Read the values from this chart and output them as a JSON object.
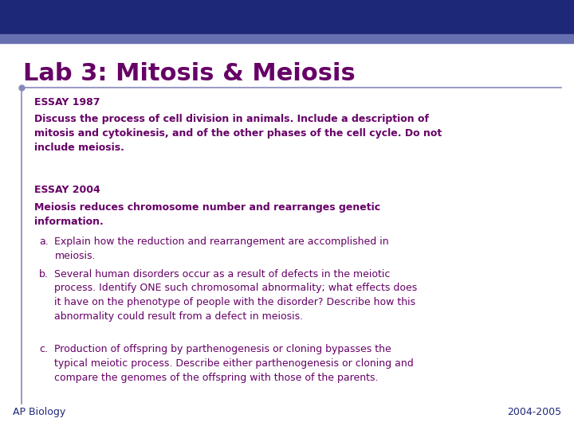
{
  "title": "Lab 3: Mitosis & Meiosis",
  "title_color": "#660066",
  "title_fontsize": 22,
  "header_bar_color": "#1E2878",
  "header_bar2_color": "#6670B0",
  "bg_color": "#FFFFFF",
  "left_line_color": "#8888BB",
  "footer_left": "AP Biology",
  "footer_right": "2004-2005",
  "footer_color": "#1E2878",
  "essay1_label": "ESSAY 1987",
  "essay1_body": "Discuss the process of cell division in animals. Include a description of\nmitosis and cytokinesis, and of the other phases of the cell cycle. Do not\ninclude meiosis.",
  "essay2_label": "ESSAY 2004",
  "essay2_intro": "Meiosis reduces chromosome number and rearranges genetic\ninformation.",
  "essay2_a_bullet": "a.",
  "essay2_a_text": "Explain how the reduction and rearrangement are accomplished in\nmeiosis.",
  "essay2_b_bullet": "b.",
  "essay2_b_text": "Several human disorders occur as a result of defects in the meiotic\nprocess. Identify ONE such chromosomal abnormality; what effects does\nit have on the phenotype of people with the disorder? Describe how this\nabnormality could result from a defect in meiosis.",
  "essay2_c_bullet": "c.",
  "essay2_c_text": "Production of offspring by parthenogenesis or cloning bypasses the\ntypical meiotic process. Describe either parthenogenesis or cloning and\ncompare the genomes of the offspring with those of the parents.",
  "label_fontsize": 9,
  "body_fontsize": 9,
  "footer_fontsize": 9
}
